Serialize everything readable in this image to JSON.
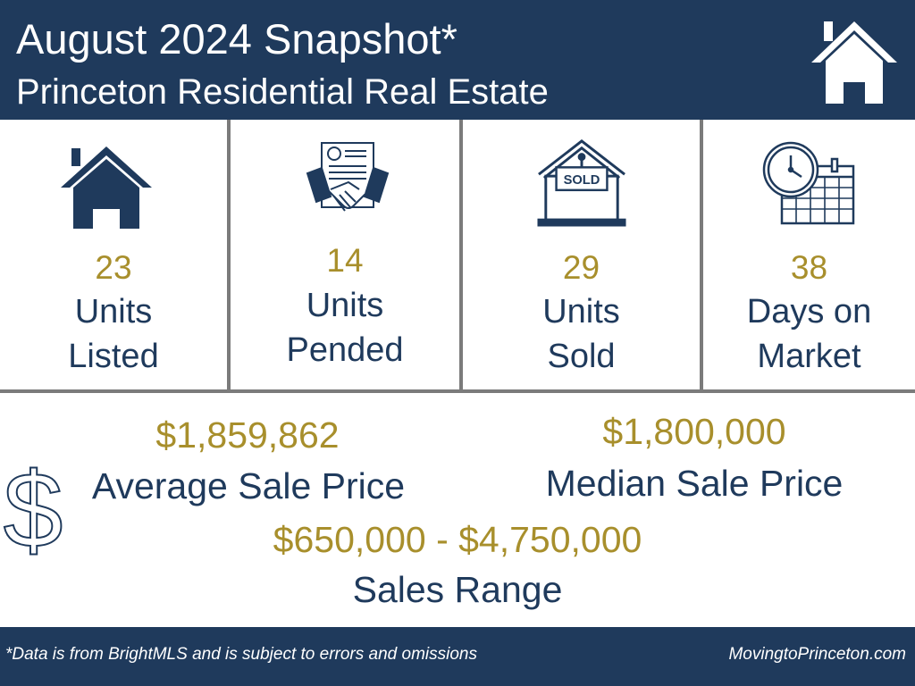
{
  "header": {
    "title": "August 2024 Snapshot*",
    "subtitle": "Princeton Residential Real Estate",
    "icon": "home-icon"
  },
  "stats": [
    {
      "icon": "house-icon",
      "value": "23",
      "line1": "Units",
      "line2": "Listed"
    },
    {
      "icon": "handshake-contract-icon",
      "value": "14",
      "line1": "Units",
      "line2": "Pended"
    },
    {
      "icon": "sold-sign-icon",
      "value": "29",
      "line1": "Units",
      "line2": "Sold"
    },
    {
      "icon": "clock-calendar-icon",
      "value": "38",
      "line1": "Days on",
      "line2": "Market"
    }
  ],
  "prices": {
    "average_value": "$1,859,862",
    "average_label": "Average Sale Price",
    "median_value": "$1,800,000",
    "median_label": "Median Sale Price",
    "range_value": "$650,000 - $4,750,000",
    "range_label": "Sales Range",
    "icon": "dollar-sign-icon"
  },
  "footer": {
    "note": "*Data is from BrightMLS and is subject to errors and omissions",
    "site": "MovingtoPrinceton.com"
  },
  "colors": {
    "navy": "#1f3a5c",
    "gold": "#a88f2c",
    "divider": "#7b7b7b"
  }
}
